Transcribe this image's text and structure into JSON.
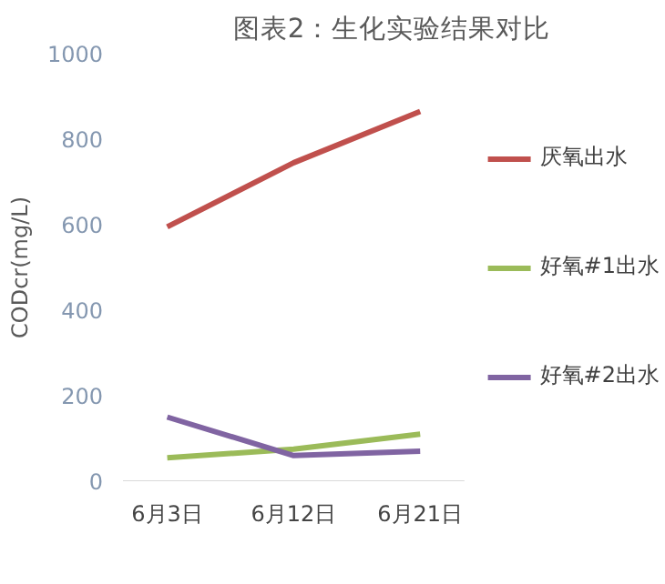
{
  "chart_data": {
    "type": "line",
    "title": "图表2：生化实验结果对比",
    "ylabel": "CODcr(mg/L)",
    "categories": [
      "6月3日",
      "6月12日",
      "6月21日"
    ],
    "series": [
      {
        "name": "厌氧出水",
        "color": "#c0504d",
        "values": [
          595,
          745,
          865
        ]
      },
      {
        "name": "好氧#1出水",
        "color": "#9bbb59",
        "values": [
          55,
          75,
          110
        ]
      },
      {
        "name": "好氧#2出水",
        "color": "#8064a2",
        "values": [
          150,
          60,
          70
        ]
      }
    ],
    "ylim": [
      0,
      1000
    ],
    "yticks": [
      0,
      200,
      400,
      600,
      800,
      1000
    ],
    "grid": false,
    "legend": "right",
    "marker": "none",
    "line_style": "solid"
  }
}
